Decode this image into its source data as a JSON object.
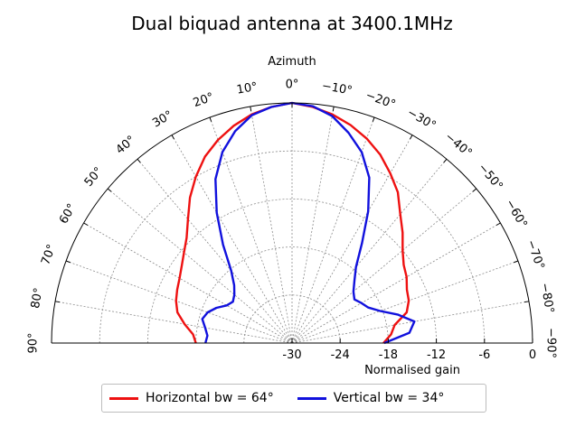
{
  "chart_data": {
    "type": "polar-line",
    "title": "Dual biquad antenna at 3400.1MHz",
    "angle_axis_label": "Azimuth",
    "radial_axis_label": "Normalised gain",
    "angle_ticks": [
      "90°",
      "80°",
      "70°",
      "60°",
      "50°",
      "40°",
      "30°",
      "20°",
      "10°",
      "0°",
      "−10°",
      "−20°",
      "−30°",
      "−40°",
      "−50°",
      "−60°",
      "−70°",
      "−80°",
      "−90°"
    ],
    "radial_ticks": [
      "-30",
      "-24",
      "-18",
      "-12",
      "-6",
      "0"
    ],
    "rlim": [
      -30,
      0
    ],
    "angle_range_deg": [
      90,
      -90
    ],
    "grid": true,
    "legend_position": "bottom-center",
    "series": [
      {
        "name": "Horizontal bw = 64°",
        "color": "#ee1111",
        "angles": [
          -90,
          -85,
          -80,
          -75,
          -70,
          -65,
          -60,
          -55,
          -50,
          -45,
          -40,
          -35,
          -30,
          -25,
          -20,
          -15,
          -10,
          -5,
          0,
          5,
          10,
          15,
          20,
          25,
          30,
          35,
          40,
          45,
          50,
          55,
          60,
          65,
          70,
          75,
          80,
          85,
          90
        ],
        "gain": [
          -18.6,
          -17.6,
          -17.0,
          -15.2,
          -14.5,
          -14.2,
          -13.5,
          -13.0,
          -12.0,
          -10.5,
          -9.0,
          -7.0,
          -5.5,
          -4.0,
          -2.8,
          -1.8,
          -1.0,
          -0.4,
          0,
          -0.4,
          -1.0,
          -1.9,
          -3.0,
          -4.3,
          -6.0,
          -7.8,
          -9.8,
          -11.4,
          -12.4,
          -13.2,
          -13.8,
          -14.2,
          -14.6,
          -15.2,
          -16.4,
          -17.6,
          -18.0
        ]
      },
      {
        "name": "Vertical bw = 34°",
        "color": "#1111dd",
        "angles": [
          -90,
          -85,
          -80,
          -75,
          -70,
          -65,
          -60,
          -55,
          -50,
          -45,
          -40,
          -35,
          -30,
          -25,
          -20,
          -15,
          -10,
          -5,
          0,
          5,
          10,
          15,
          20,
          25,
          30,
          35,
          40,
          45,
          50,
          55,
          60,
          65,
          70,
          75,
          80,
          85,
          90
        ],
        "gain": [
          -18.5,
          -15.3,
          -14.5,
          -16.3,
          -18.3,
          -19.5,
          -20.0,
          -20.5,
          -20.0,
          -19.0,
          -17.6,
          -14.8,
          -11.0,
          -7.2,
          -4.6,
          -2.8,
          -1.2,
          -0.3,
          0,
          -0.4,
          -1.1,
          -2.6,
          -4.6,
          -7.4,
          -11.2,
          -15.0,
          -18.2,
          -19.8,
          -20.6,
          -21.0,
          -20.6,
          -19.6,
          -18.8,
          -18.4,
          -19.0,
          -19.4,
          -19.2
        ]
      }
    ]
  }
}
